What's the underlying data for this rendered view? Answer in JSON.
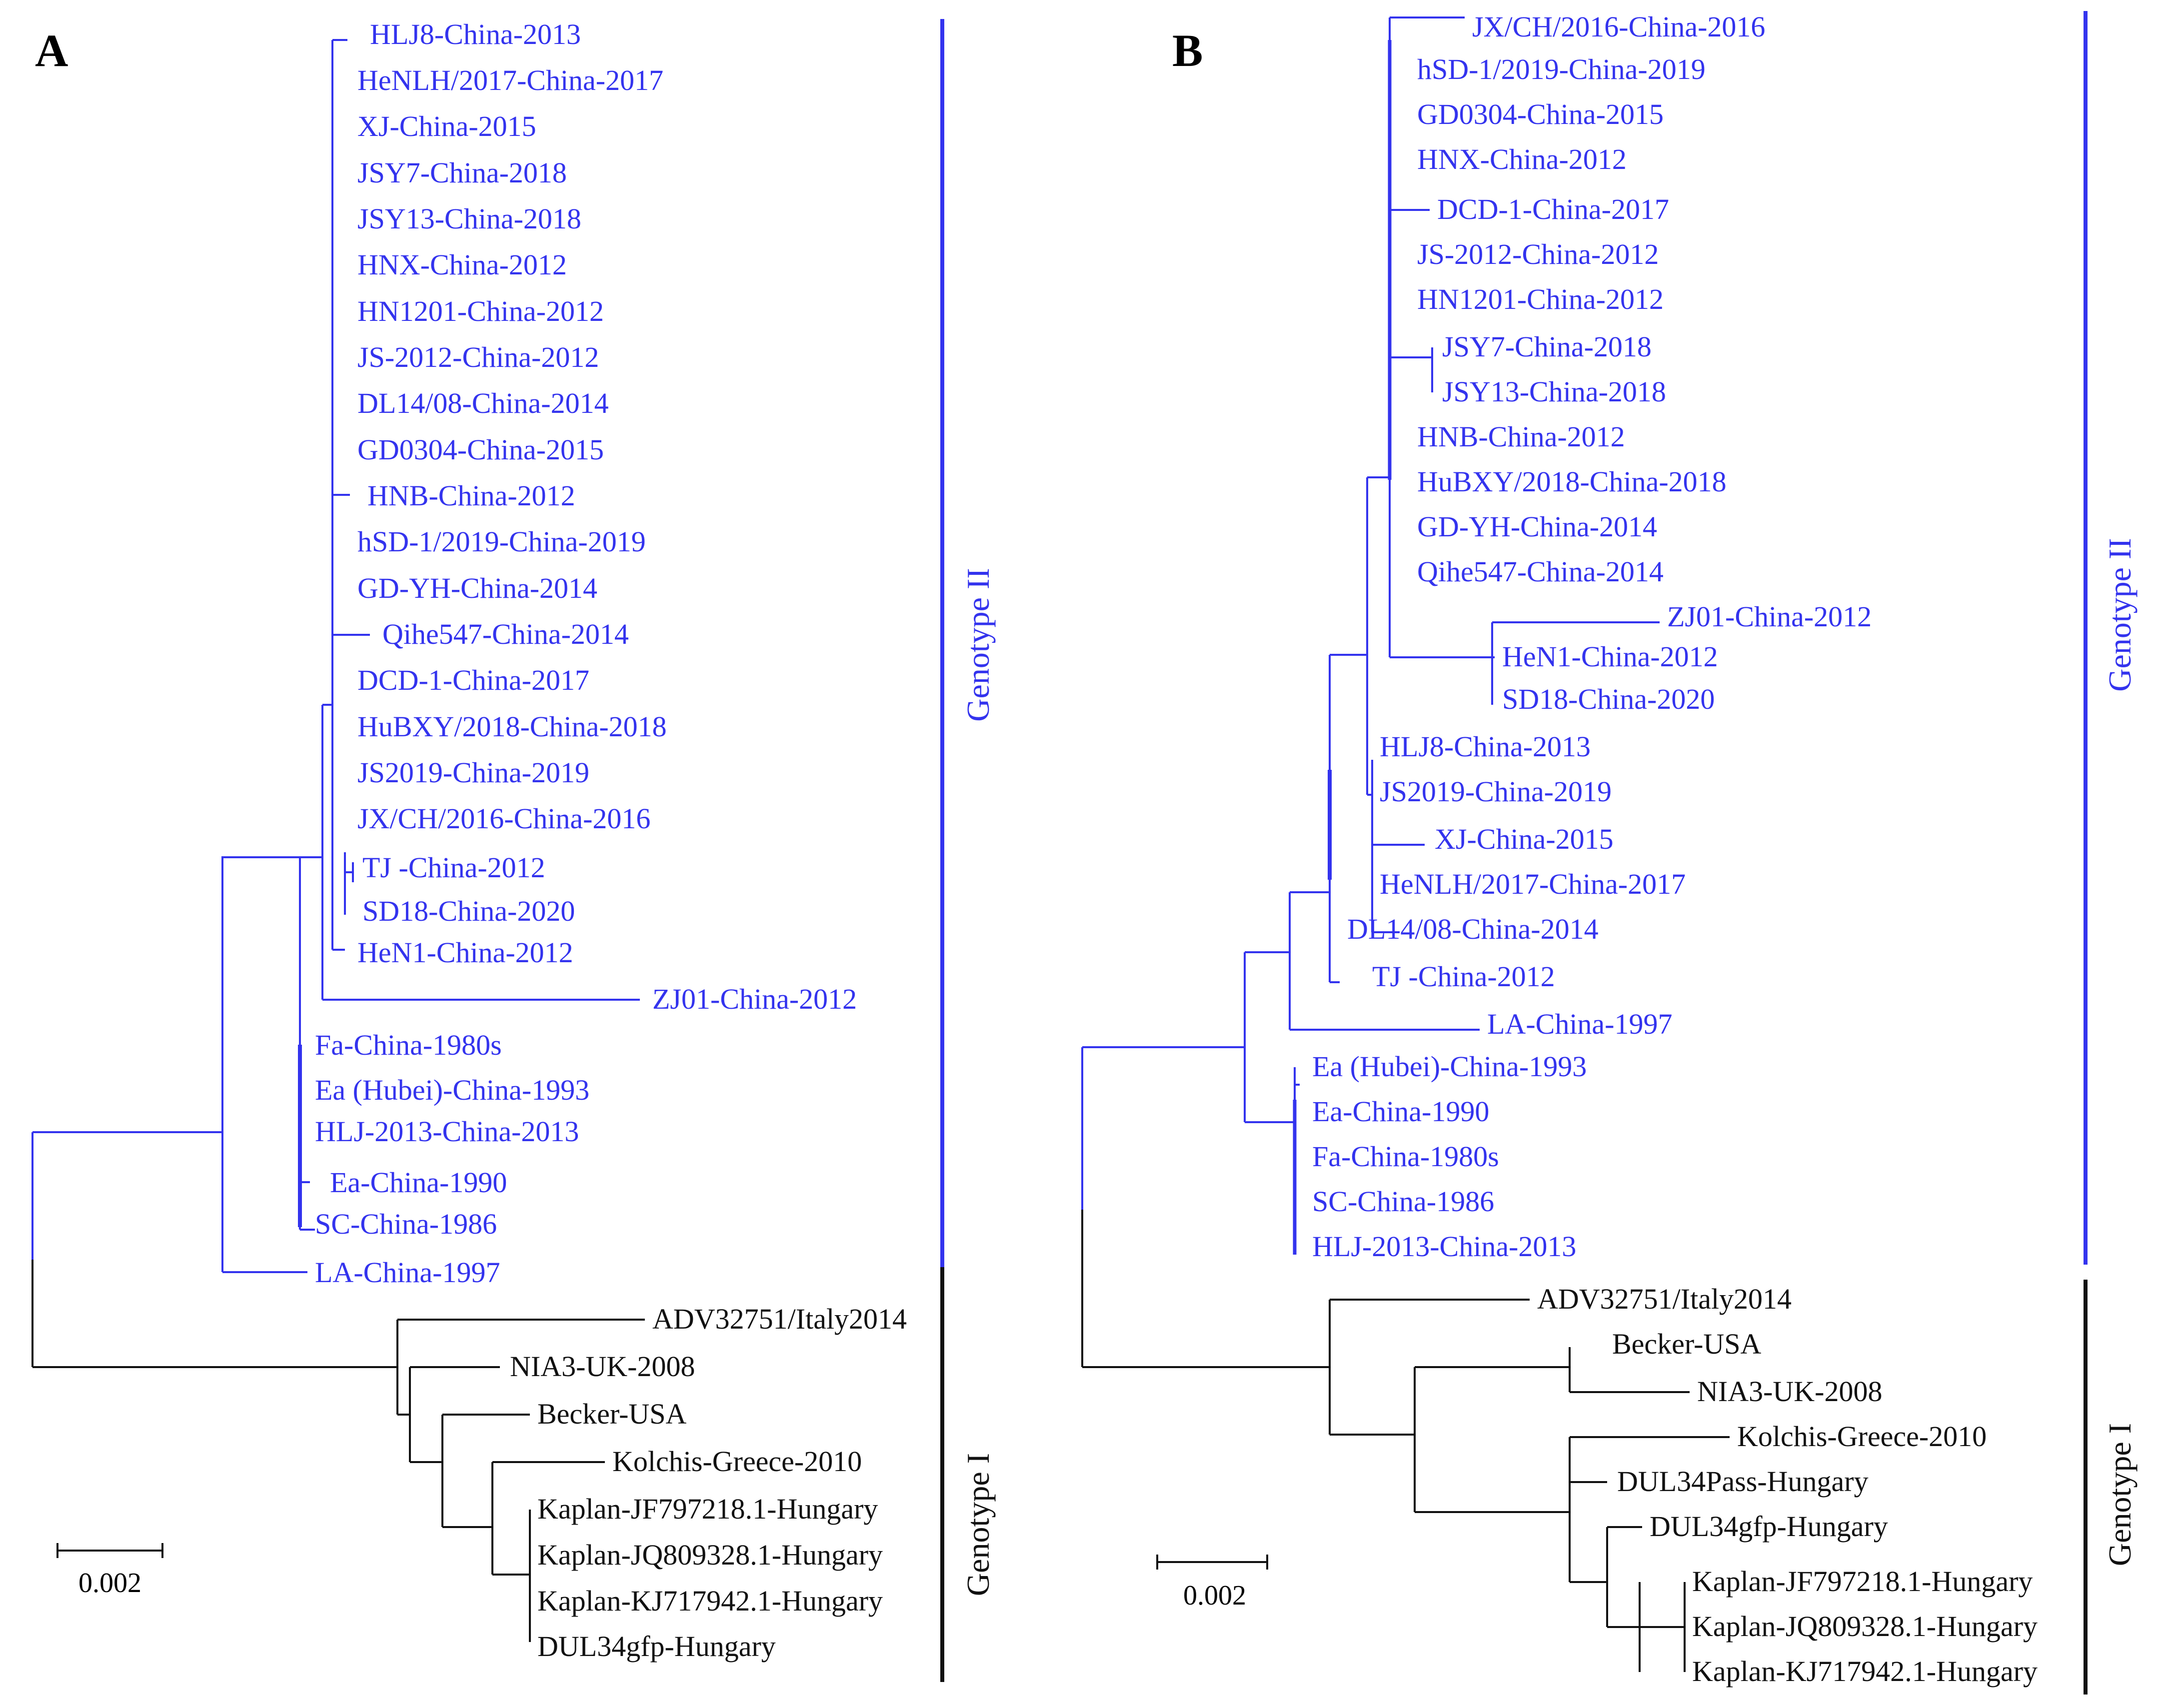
{
  "colors": {
    "genotype2": "#3333ee",
    "genotype1": "#111111",
    "background": "#ffffff"
  },
  "panels": [
    {
      "label": "A",
      "scale_label": "0.002",
      "genotype_labels": {
        "ii": "Genotype II",
        "i": "Genotype I"
      },
      "leaves": [
        "HLJ8-China-2013",
        "HeNLH/2017-China-2017",
        "XJ-China-2015",
        "JSY7-China-2018",
        "JSY13-China-2018",
        "HNX-China-2012",
        "HN1201-China-2012",
        "JS-2012-China-2012",
        "DL14/08-China-2014",
        "GD0304-China-2015",
        "HNB-China-2012",
        "hSD-1/2019-China-2019",
        "GD-YH-China-2014",
        "Qihe547-China-2014",
        "DCD-1-China-2017",
        "HuBXY/2018-China-2018",
        "JS2019-China-2019",
        "JX/CH/2016-China-2016",
        "TJ -China-2012",
        "SD18-China-2020",
        "HeN1-China-2012",
        "ZJ01-China-2012",
        "Fa-China-1980s",
        "Ea (Hubei)-China-1993",
        "HLJ-2013-China-2013",
        "Ea-China-1990",
        "SC-China-1986",
        "LA-China-1997",
        "ADV32751/Italy2014",
        "NIA3-UK-2008",
        "Becker-USA",
        "Kolchis-Greece-2010",
        "Kaplan-JF797218.1-Hungary",
        "Kaplan-JQ809328.1-Hungary",
        "Kaplan-KJ717942.1-Hungary",
        "DUL34gfp-Hungary"
      ]
    },
    {
      "label": "B",
      "scale_label": "0.002",
      "genotype_labels": {
        "ii": "Genotype II",
        "i": "Genotype I"
      },
      "leaves": [
        "JX/CH/2016-China-2016",
        "hSD-1/2019-China-2019",
        "GD0304-China-2015",
        "HNX-China-2012",
        "DCD-1-China-2017",
        "JS-2012-China-2012",
        "HN1201-China-2012",
        "JSY7-China-2018",
        "JSY13-China-2018",
        "HNB-China-2012",
        "HuBXY/2018-China-2018",
        "GD-YH-China-2014",
        "Qihe547-China-2014",
        "ZJ01-China-2012",
        "HeN1-China-2012",
        "SD18-China-2020",
        "HLJ8-China-2013",
        "JS2019-China-2019",
        "XJ-China-2015",
        "HeNLH/2017-China-2017",
        "DL14/08-China-2014",
        "TJ -China-2012",
        "LA-China-1997",
        "Ea (Hubei)-China-1993",
        "Ea-China-1990",
        "Fa-China-1980s",
        "SC-China-1986",
        "HLJ-2013-China-2013",
        "ADV32751/Italy2014",
        "Becker-USA",
        "NIA3-UK-2008",
        "Kolchis-Greece-2010",
        "DUL34Pass-Hungary",
        "DUL34gfp-Hungary",
        "Kaplan-JF797218.1-Hungary",
        "Kaplan-JQ809328.1-Hungary",
        "Kaplan-KJ717942.1-Hungary"
      ]
    }
  ]
}
